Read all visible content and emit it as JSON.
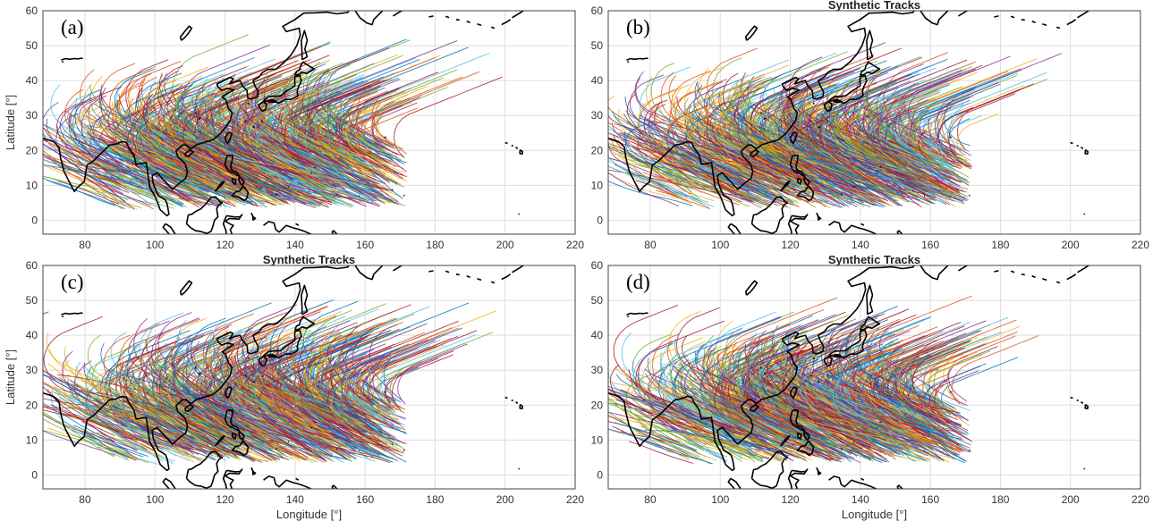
{
  "panels": [
    {
      "label": "(a)",
      "title": "",
      "xlabel": "",
      "ylabel": "Latitude [°]",
      "seed": 11
    },
    {
      "label": "(b)",
      "title": "Synthetic Tracks",
      "xlabel": "",
      "ylabel": "",
      "seed": 23
    },
    {
      "label": "(c)",
      "title": "Synthetic Tracks",
      "xlabel": "Longitude [°]",
      "ylabel": "Latitude [°]",
      "seed": 37
    },
    {
      "label": "(d)",
      "title": "Synthetic Tracks",
      "xlabel": "Longitude [°]",
      "ylabel": "",
      "seed": 53
    }
  ],
  "axes": {
    "xlim": [
      68,
      220
    ],
    "ylim": [
      -4,
      60
    ],
    "xticks": [
      "80",
      "100",
      "120",
      "140",
      "160",
      "180",
      "200",
      "220"
    ],
    "yticks": [
      "0",
      "10",
      "20",
      "30",
      "40",
      "50",
      "60"
    ],
    "grid": true
  },
  "tracks": {
    "count_per_panel": 1100,
    "colors": [
      "#0072BD",
      "#D95319",
      "#EDB120",
      "#7E2F8E",
      "#77AC30",
      "#4DBEEE",
      "#A2142F"
    ]
  },
  "colors": {
    "coastline": "#000000",
    "background": "#ffffff"
  }
}
